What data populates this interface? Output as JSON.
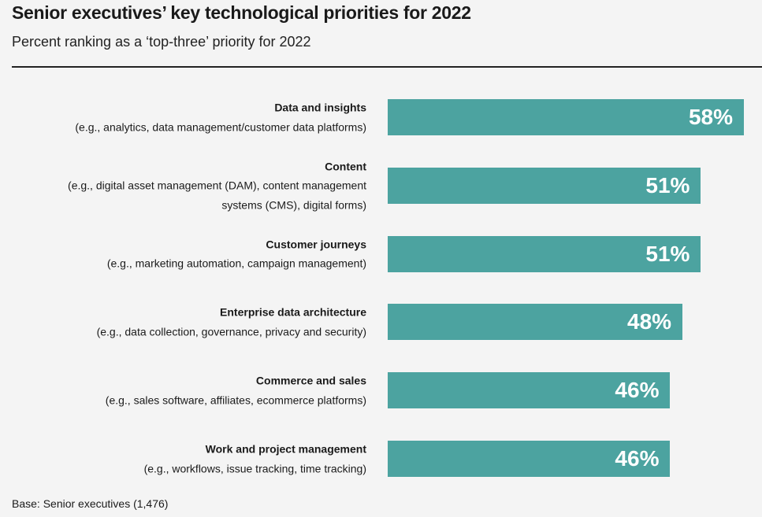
{
  "chart_data": {
    "type": "bar",
    "orientation": "horizontal",
    "title": "Senior executives’ key technological priorities for 2022",
    "subtitle": "Percent ranking as a ‘top-three’ priority for 2022",
    "categories": [
      {
        "name": "Data and insights",
        "description": "(e.g., analytics, data management/customer data platforms)"
      },
      {
        "name": "Content",
        "description": "(e.g., digital asset management (DAM), content management systems (CMS), digital forms)"
      },
      {
        "name": "Customer journeys",
        "description": "(e.g., marketing automation, campaign management)"
      },
      {
        "name": "Enterprise data architecture",
        "description": "(e.g., data collection, governance, privacy and security)"
      },
      {
        "name": "Commerce and sales",
        "description": "(e.g., sales software, affiliates, ecommerce platforms)"
      },
      {
        "name": "Work and project management",
        "description": "(e.g., workflows, issue tracking, time tracking)"
      }
    ],
    "values": [
      58,
      51,
      51,
      48,
      46,
      46
    ],
    "value_labels": [
      "58%",
      "51%",
      "51%",
      "48%",
      "46%",
      "46%"
    ],
    "xlim": [
      0,
      58
    ],
    "grid": false,
    "bar_color": "#4ca3a0",
    "note": "Base: Senior executives (1,476)"
  }
}
